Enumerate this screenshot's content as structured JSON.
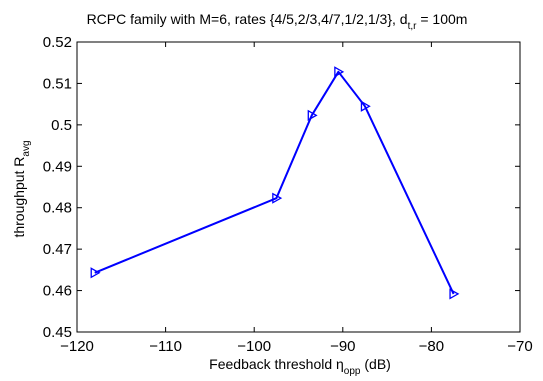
{
  "chart_data": {
    "type": "line",
    "title_main": "RCPC family with M=6, rates {4/5,2/3,4/7,1/2,1/3}, d",
    "title_sub": "t,r",
    "title_tail": " = 100m",
    "xlabel_main": "Feedback threshold η",
    "xlabel_sub": "opp",
    "xlabel_tail": " (dB)",
    "ylabel_main": "throughput R",
    "ylabel_sub": "avg",
    "xlim": [
      -120,
      -70
    ],
    "ylim": [
      0.45,
      0.52
    ],
    "xticks": [
      -120,
      -110,
      -100,
      -90,
      -80,
      -70
    ],
    "yticks": [
      0.45,
      0.46,
      0.47,
      0.48,
      0.49,
      0.5,
      0.51,
      0.52
    ],
    "xtick_labels": [
      "−120",
      "−110",
      "−100",
      "−90",
      "−80",
      "−70"
    ],
    "ytick_labels": [
      "0.45",
      "0.46",
      "0.47",
      "0.48",
      "0.49",
      "0.5",
      "0.51",
      "0.52"
    ],
    "grid": false,
    "marker": "triangle-right",
    "color": "#0000ff",
    "series": [
      {
        "x": [
          -118,
          -97.5,
          -93.5,
          -90.5,
          -87.5,
          -77.5
        ],
        "y": [
          0.4643,
          0.4823,
          0.5023,
          0.5128,
          0.5045,
          0.4592
        ]
      }
    ]
  }
}
